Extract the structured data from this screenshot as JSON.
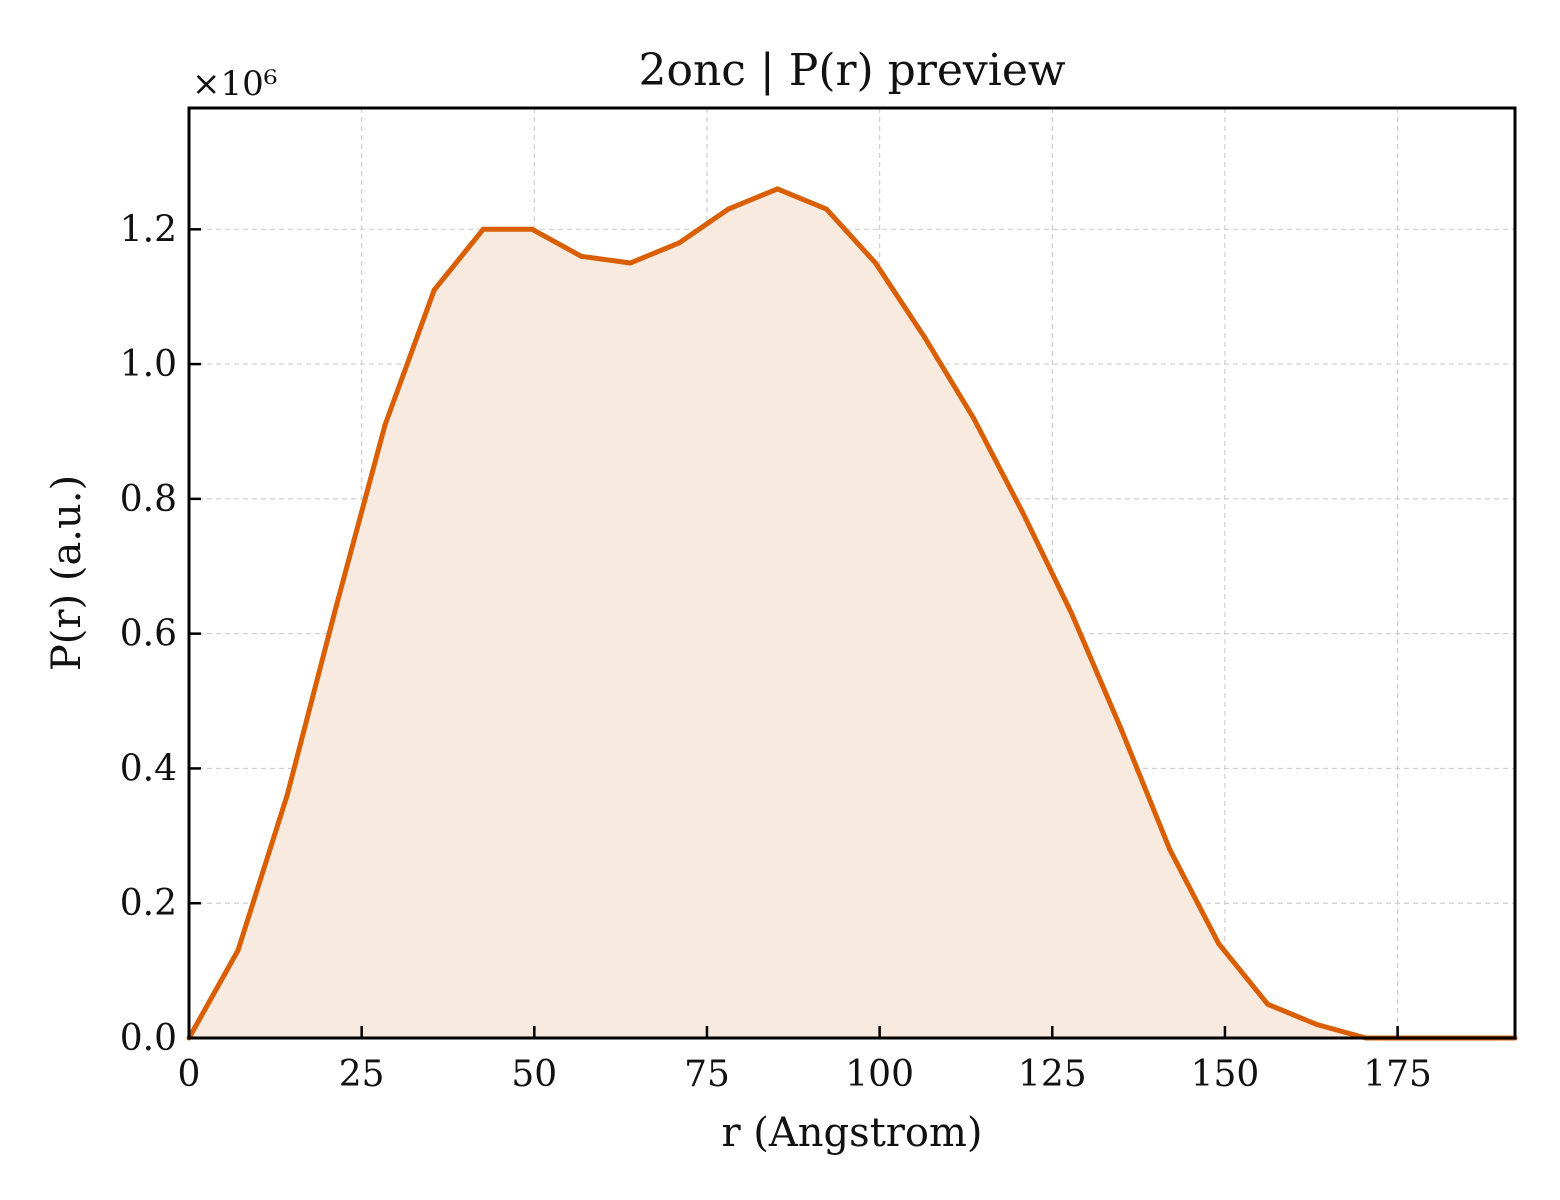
{
  "chart_data": {
    "type": "area",
    "title": "2onc | P(r) preview",
    "xlabel": "r (Angstrom)",
    "ylabel": "P(r) (a.u.)",
    "y_multiplier_label": "×10⁶",
    "xlim": [
      0,
      192
    ],
    "ylim": [
      0,
      1.38
    ],
    "x_ticks": [
      0,
      25,
      50,
      75,
      100,
      125,
      150,
      175
    ],
    "x_tick_labels": [
      "0",
      "25",
      "50",
      "75",
      "100",
      "125",
      "150",
      "175"
    ],
    "y_ticks": [
      0.0,
      0.2,
      0.4,
      0.6,
      0.8,
      1.0,
      1.2
    ],
    "y_tick_labels": [
      "0.0",
      "0.2",
      "0.4",
      "0.6",
      "0.8",
      "1.0",
      "1.2"
    ],
    "grid": true,
    "x": [
      0,
      7.1,
      14.2,
      21.3,
      28.4,
      35.5,
      42.6,
      49.7,
      56.8,
      63.9,
      71.0,
      78.1,
      85.2,
      92.3,
      99.4,
      106.5,
      113.6,
      120.7,
      127.8,
      134.9,
      142.0,
      149.1,
      156.2,
      163.3,
      170.4,
      177.5,
      184.6,
      192.0
    ],
    "values": [
      0.0,
      0.13,
      0.36,
      0.64,
      0.91,
      1.11,
      1.2,
      1.2,
      1.16,
      1.15,
      1.18,
      1.23,
      1.26,
      1.23,
      1.15,
      1.04,
      0.92,
      0.78,
      0.63,
      0.46,
      0.28,
      0.14,
      0.05,
      0.02,
      0.0,
      0.0,
      0.0,
      0.0
    ],
    "colors": {
      "line": "#d95f02",
      "fill": "#f8eadf",
      "grid": "#cfcfcf",
      "axis": "#000000"
    }
  }
}
